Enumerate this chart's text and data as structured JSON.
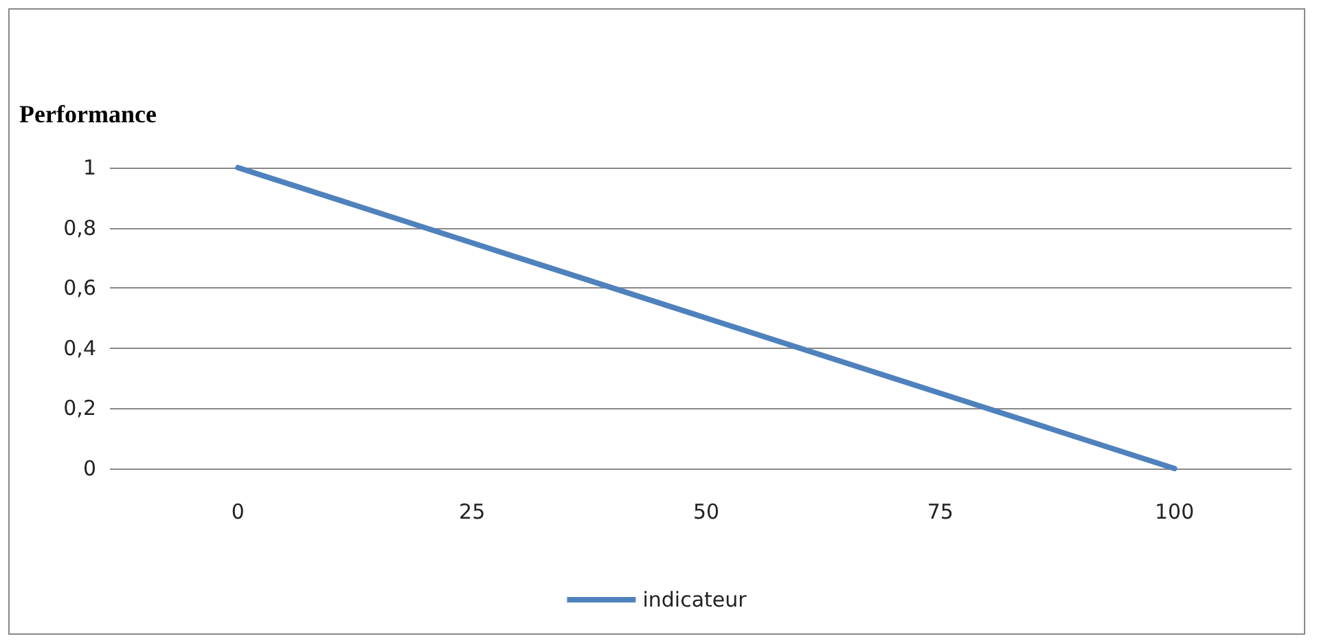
{
  "chart_data": {
    "type": "line",
    "ylabel": "Performance",
    "categories": [
      "0",
      "25",
      "50",
      "75",
      "100"
    ],
    "series": [
      {
        "name": "indicateur",
        "color": "#4f81bd",
        "values": [
          1,
          0.75,
          0.5,
          0.25,
          0
        ]
      }
    ],
    "ylim": [
      0,
      1
    ],
    "yticks": [
      0,
      {
        "value": 0.2,
        "label": "0,2"
      },
      {
        "value": 0.4,
        "label": "0,4"
      },
      {
        "value": 0.6,
        "label": "0,6"
      },
      {
        "value": 0.8,
        "label": "0,8"
      },
      1
    ],
    "grid": "y",
    "legend": "bottom",
    "marker": "none",
    "line_style": "solid"
  }
}
